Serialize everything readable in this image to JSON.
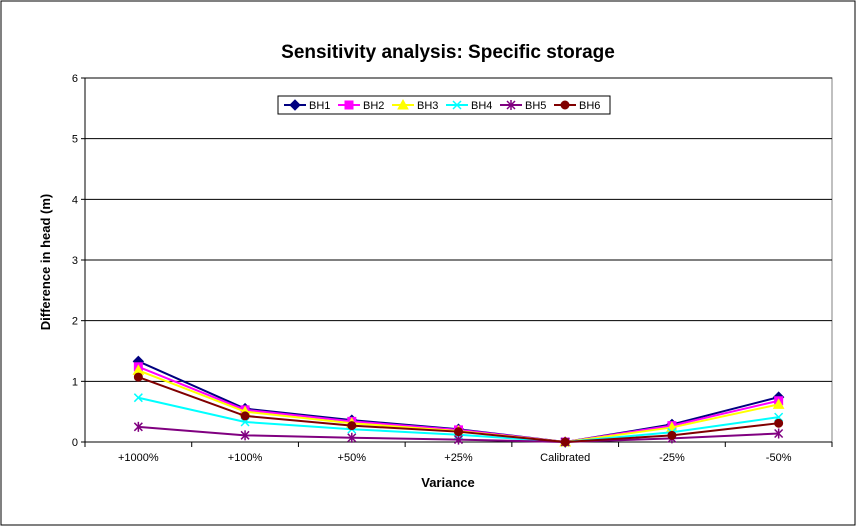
{
  "chart_data": {
    "type": "line",
    "title": "Sensitivity analysis: Specific storage",
    "xlabel": "Variance",
    "ylabel": "Difference in head (m)",
    "categories": [
      "+1000%",
      "+100%",
      "+50%",
      "+25%",
      "Calibrated",
      "-25%",
      "-50%"
    ],
    "ylim": [
      0,
      6
    ],
    "yticks": [
      0,
      1,
      2,
      3,
      4,
      5,
      6
    ],
    "grid": true,
    "legend_position": "top-center",
    "series": [
      {
        "name": "BH1",
        "color": "#000080",
        "marker": "diamond",
        "values": [
          1.33,
          0.55,
          0.36,
          0.21,
          0.0,
          0.29,
          0.74
        ]
      },
      {
        "name": "BH2",
        "color": "#FF00FF",
        "marker": "square",
        "values": [
          1.24,
          0.53,
          0.34,
          0.2,
          0.0,
          0.27,
          0.68
        ]
      },
      {
        "name": "BH3",
        "color": "#FFFF00",
        "marker": "triangle",
        "values": [
          1.18,
          0.5,
          0.31,
          0.18,
          0.0,
          0.24,
          0.62
        ]
      },
      {
        "name": "BH4",
        "color": "#00FFFF",
        "marker": "x",
        "values": [
          0.73,
          0.33,
          0.21,
          0.12,
          0.0,
          0.16,
          0.41
        ]
      },
      {
        "name": "BH5",
        "color": "#800080",
        "marker": "star",
        "values": [
          0.25,
          0.11,
          0.07,
          0.04,
          0.0,
          0.06,
          0.14
        ]
      },
      {
        "name": "BH6",
        "color": "#800000",
        "marker": "circle",
        "values": [
          1.07,
          0.43,
          0.27,
          0.17,
          0.0,
          0.11,
          0.31
        ]
      }
    ]
  }
}
